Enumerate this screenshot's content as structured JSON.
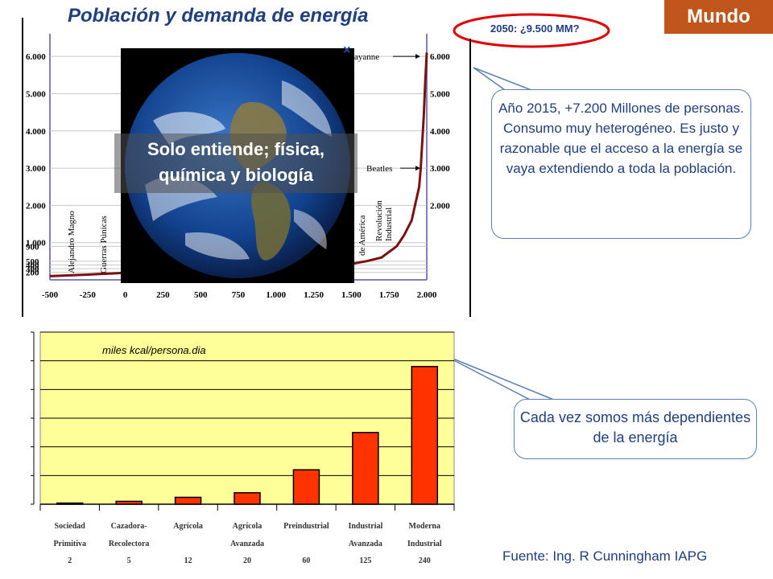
{
  "header": {
    "title": "Población y demanda de energía",
    "region_badge": "Mundo"
  },
  "annotations": {
    "forecast_2050": "2050: ¿9.500 MM?",
    "callout_population": "Año 2015, +7.200 Millones de personas. Consumo muy heterogéneo. Es justo y razonable que el  acceso a la energía se vaya extendiendo a toda la población.",
    "callout_energy": "Cada vez somos más dependientes de la energía",
    "earth_caption": "Solo entiende; física, química y biología",
    "source": "Fuente: Ing. R Cunningham IAPG",
    "close_mark": "×"
  },
  "colors": {
    "title": "#1f3f7f",
    "badge": "#c0561b",
    "population_line": "#7a1010",
    "bar_fill": "#ff3300",
    "plot_bg": "#ffff99"
  },
  "chart_data": [
    {
      "type": "line",
      "title": "Población y demanda de energía",
      "x_ticks": [
        -500,
        -250,
        0,
        250,
        500,
        750,
        1000,
        1250,
        1500,
        1750,
        2000
      ],
      "x_tick_labels": [
        "-500",
        "-250",
        "0",
        "250",
        "500",
        "750",
        "1.000",
        "1.250",
        "1.500",
        "1.750",
        "2.000"
      ],
      "xlim": [
        -500,
        2000
      ],
      "y_ticks_left": [
        200,
        300,
        400,
        500,
        900,
        1000,
        2000,
        3000,
        4000,
        5000,
        6000
      ],
      "y_tick_labels_left": [
        "200",
        "300",
        "400",
        "500",
        "900",
        "1.000",
        "2.000",
        "3.000",
        "4.000",
        "5.000",
        "6.000"
      ],
      "y_ticks_right": [
        2000,
        3000,
        4000,
        5000,
        6000
      ],
      "y_tick_labels_right": [
        "2.000",
        "3.000",
        "4.000",
        "5.000",
        "6.000"
      ],
      "ylim": [
        0,
        6500
      ],
      "x": [
        -500,
        -250,
        0,
        250,
        500,
        750,
        1000,
        1250,
        1500,
        1600,
        1700,
        1800,
        1850,
        1900,
        1950,
        1960,
        1970,
        1980,
        1990,
        2000
      ],
      "y": [
        100,
        140,
        190,
        200,
        200,
        220,
        270,
        350,
        430,
        500,
        600,
        900,
        1200,
        1600,
        2500,
        3000,
        3700,
        4400,
        5300,
        6100
      ],
      "events": [
        {
          "label": "Alejandro Magno"
        },
        {
          "label": "Guerras Púnicas"
        },
        {
          "label": "de América"
        },
        {
          "label": "Revolución Industrial"
        },
        {
          "label": "Beatles",
          "y": 3000
        },
        {
          "label": "ayanne",
          "y": 6000
        }
      ]
    },
    {
      "type": "bar",
      "title": "miles kcal/persona.dia",
      "categories": [
        "Sociedad Primitiva",
        "Cazadora- Recolectora",
        "Agrícola",
        "Agrícola Avanzada",
        "Preindustrial",
        "Industrial Avanzada",
        "Moderna Industrial"
      ],
      "category_lines": [
        [
          "Sociedad",
          "Primitiva"
        ],
        [
          "Cazadora-",
          "Recolectora"
        ],
        [
          "Agrícola",
          ""
        ],
        [
          "Agrícola",
          "Avanzada"
        ],
        [
          "Preindustrial",
          ""
        ],
        [
          "Industrial",
          "Avanzada"
        ],
        [
          "Moderna",
          "Industrial"
        ]
      ],
      "value_labels": [
        "2",
        "5",
        "12",
        "20",
        "60",
        "125",
        "240"
      ],
      "values": [
        2,
        5,
        12,
        20,
        60,
        125,
        240
      ],
      "ylim": [
        0,
        300
      ]
    }
  ]
}
